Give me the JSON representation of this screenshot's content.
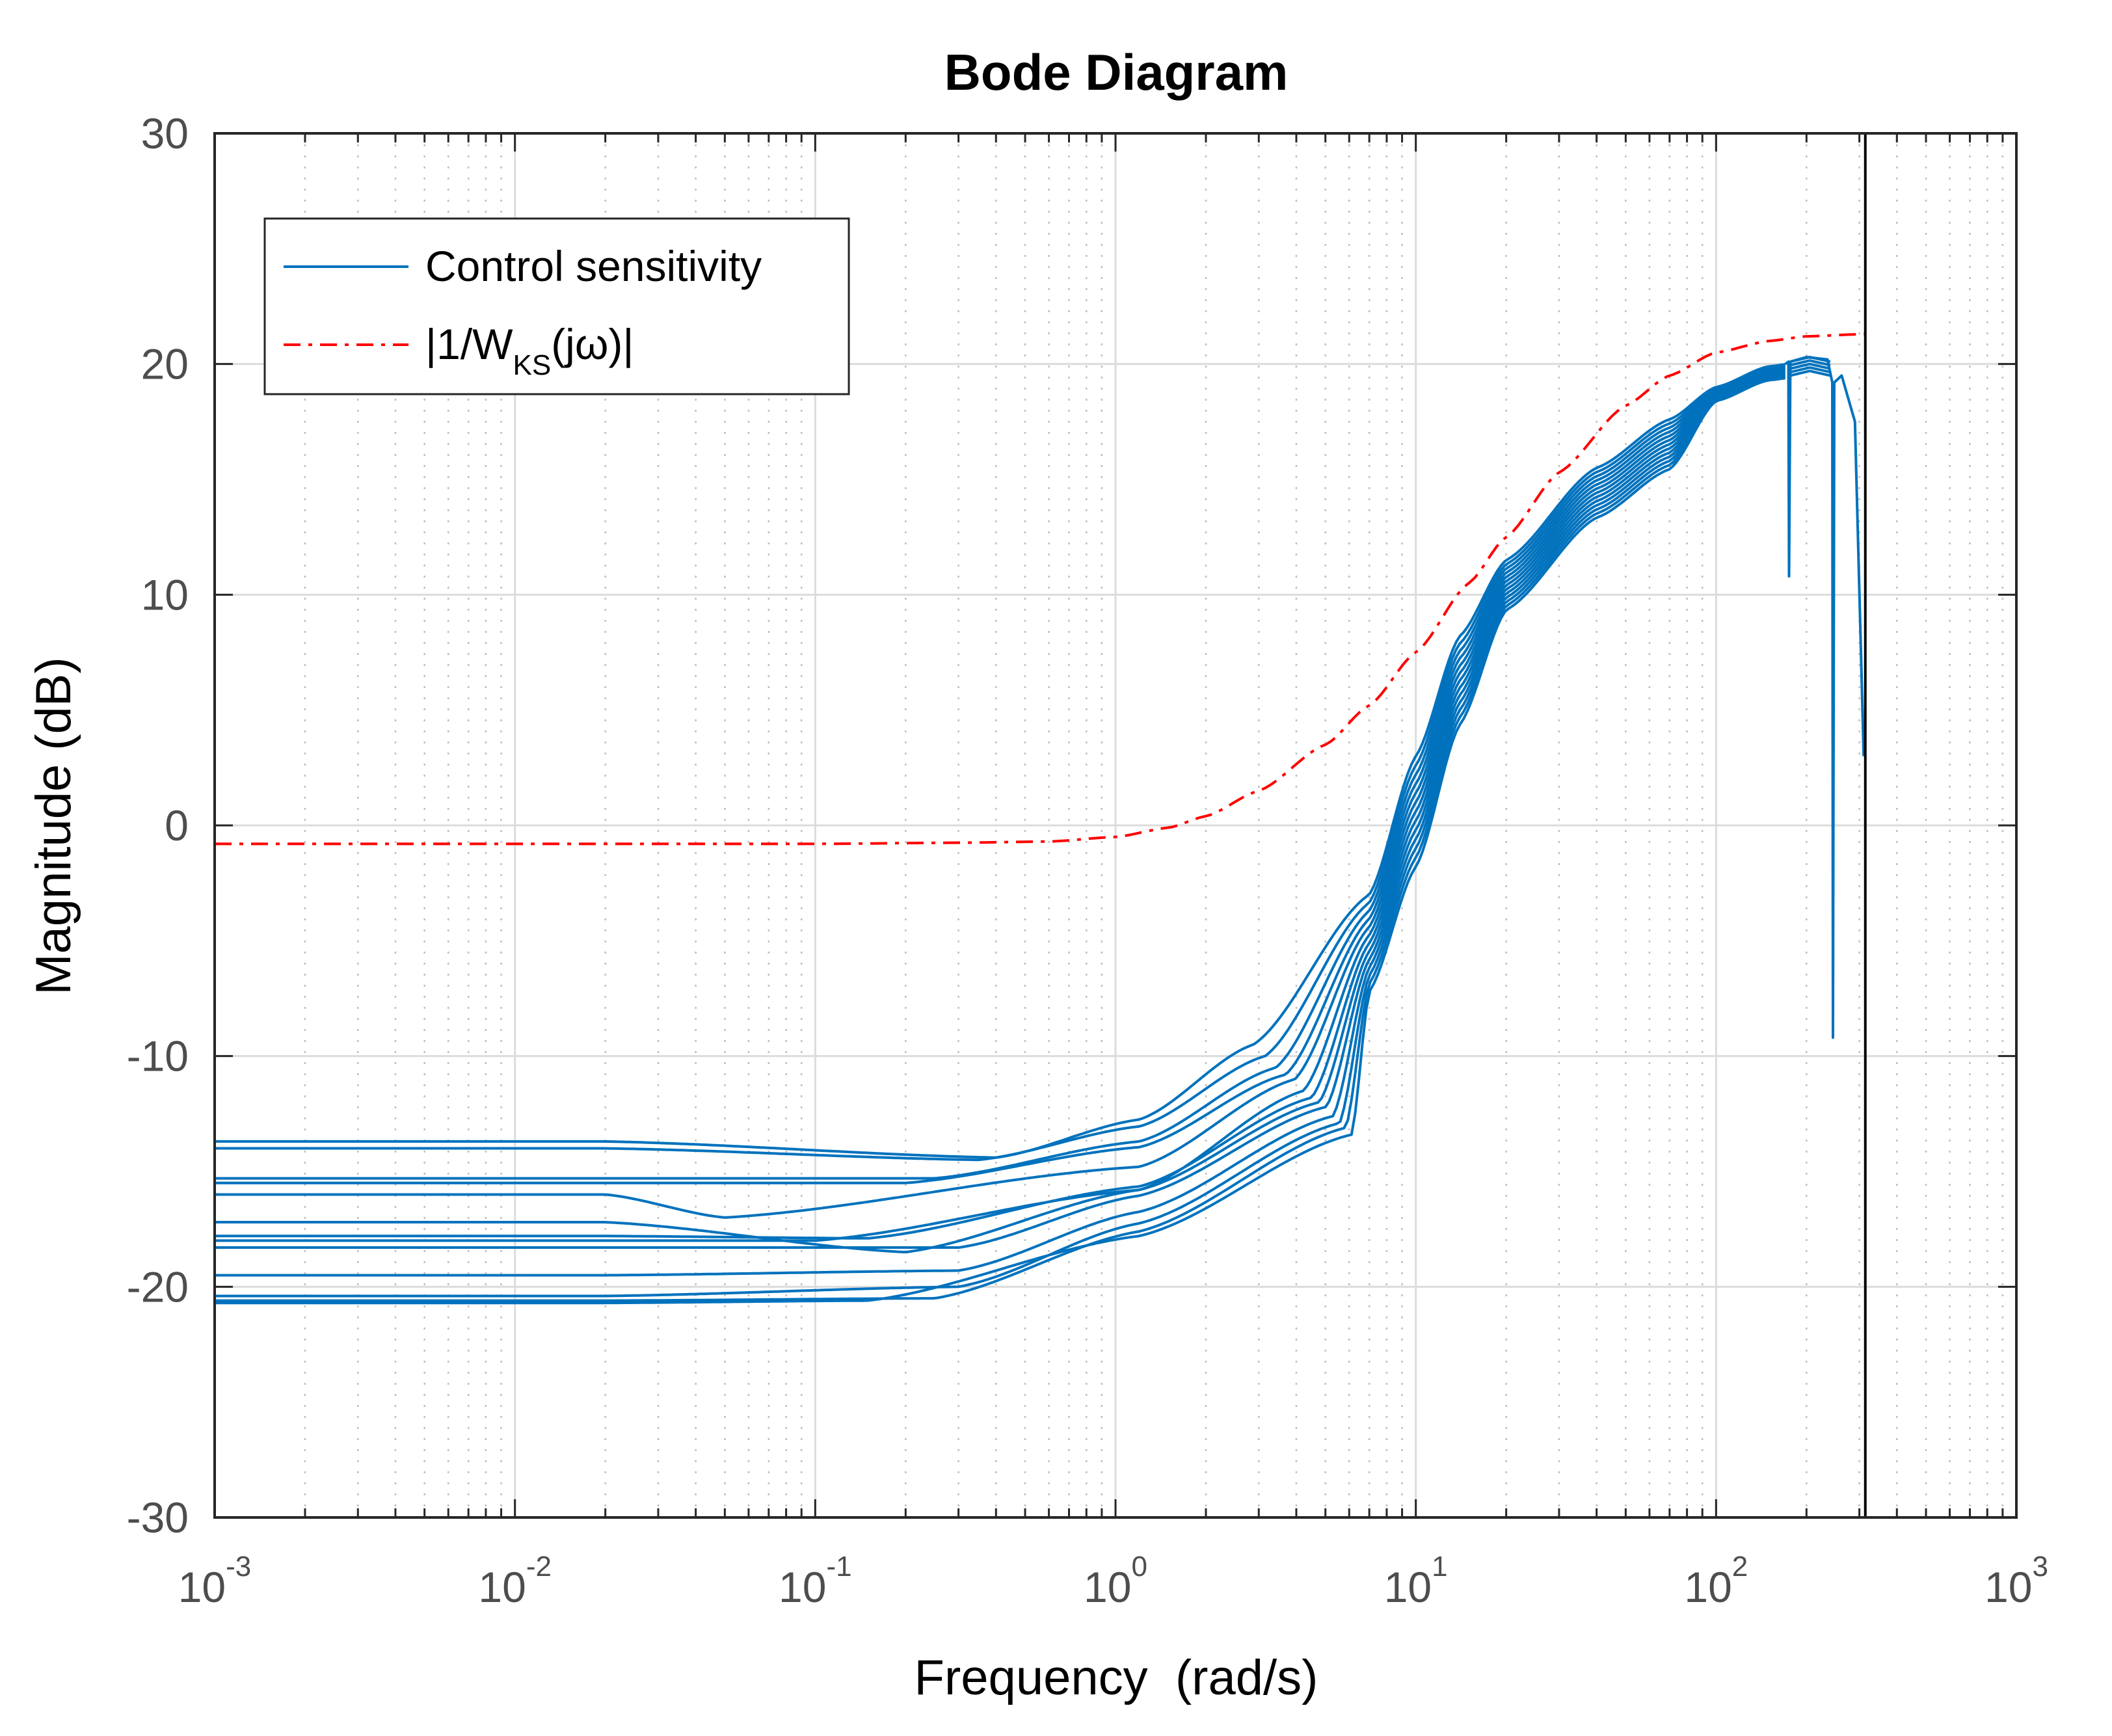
{
  "chart_data": {
    "type": "line",
    "title": "Bode Diagram",
    "xlabel": "Frequency  (rad/s)",
    "ylabel": "Magnitude (dB)",
    "xscale": "log",
    "xlim": [
      0.001,
      1000
    ],
    "ylim": [
      -30,
      30
    ],
    "x_ticks": [
      {
        "base": "10",
        "exp": "-3",
        "value": 0.001
      },
      {
        "base": "10",
        "exp": "-2",
        "value": 0.01
      },
      {
        "base": "10",
        "exp": "-1",
        "value": 0.1
      },
      {
        "base": "10",
        "exp": "0",
        "value": 1
      },
      {
        "base": "10",
        "exp": "1",
        "value": 10
      },
      {
        "base": "10",
        "exp": "2",
        "value": 100
      },
      {
        "base": "10",
        "exp": "3",
        "value": 1000
      }
    ],
    "y_ticks": [
      {
        "label": "30",
        "value": 30
      },
      {
        "label": "20",
        "value": 20
      },
      {
        "label": "10",
        "value": 10
      },
      {
        "label": "0",
        "value": 0
      },
      {
        "label": "-10",
        "value": -10
      },
      {
        "label": "-20",
        "value": -20
      },
      {
        "label": "-30",
        "value": -30
      }
    ],
    "grid": true,
    "legend_position": "top-left",
    "legend": [
      {
        "text": "Control sensitivity",
        "color": "#0072bd",
        "style": "solid"
      },
      {
        "pre": "|1/W",
        "sub": "KS",
        "post": "(jω)|",
        "color": "#ff0000",
        "style": "dashdot"
      }
    ],
    "nyquist_line": {
      "x": 314,
      "color": "#000000"
    },
    "weight_curve": {
      "name": "|1/W_KS(jω)|",
      "x": [
        0.001,
        0.01,
        0.1,
        0.3,
        0.6,
        1,
        1.5,
        2,
        3,
        5,
        7,
        10,
        15,
        20,
        30,
        50,
        70,
        100,
        150,
        200,
        314
      ],
      "y": [
        -0.8,
        -0.8,
        -0.8,
        -0.75,
        -0.7,
        -0.5,
        -0.1,
        0.4,
        1.5,
        3.5,
        5.2,
        7.5,
        10.5,
        12.5,
        15.3,
        18.2,
        19.5,
        20.5,
        21.0,
        21.2,
        21.3
      ]
    },
    "sensitivity_series": [
      {
        "low": -13.7,
        "mid_x": 0.4,
        "mid_y": -14.4,
        "knee": -9.5
      },
      {
        "low": -14.0,
        "mid_x": 0.35,
        "mid_y": -14.5,
        "knee": -10.0
      },
      {
        "low": -15.3,
        "mid_x": 0.25,
        "mid_y": -15.3,
        "knee": -10.5
      },
      {
        "low": -15.5,
        "mid_x": 0.2,
        "mid_y": -15.5,
        "knee": -10.8
      },
      {
        "low": -16.0,
        "mid_x": 0.05,
        "mid_y": -17.0,
        "knee": -11.0
      },
      {
        "low": -17.2,
        "mid_x": 0.2,
        "mid_y": -18.5,
        "knee": -11.5
      },
      {
        "low": -17.8,
        "mid_x": 0.15,
        "mid_y": -17.9,
        "knee": -11.8
      },
      {
        "low": -18.0,
        "mid_x": 0.1,
        "mid_y": -18.0,
        "knee": -12.0
      },
      {
        "low": -18.3,
        "mid_x": 0.3,
        "mid_y": -18.3,
        "knee": -12.2
      },
      {
        "low": -19.5,
        "mid_x": 0.3,
        "mid_y": -19.3,
        "knee": -12.6
      },
      {
        "low": -20.4,
        "mid_x": 0.3,
        "mid_y": -20.0,
        "knee": -12.9
      },
      {
        "low": -20.6,
        "mid_x": 0.25,
        "mid_y": -20.5,
        "knee": -13.1
      },
      {
        "low": -20.7,
        "mid_x": 0.15,
        "mid_y": -20.6,
        "knee": -13.4
      }
    ],
    "sensitivity_high": {
      "x": [
        20,
        40,
        70,
        100,
        150,
        175
      ],
      "y": [
        11.5,
        15.5,
        17.6,
        19.0,
        19.9,
        20.0
      ]
    },
    "sensitivity_notches": [
      {
        "x": 175,
        "depth": 10.8,
        "peak": 20.1
      },
      {
        "x": 245,
        "depth": -9.2,
        "peak": 20.2
      },
      {
        "x": 310,
        "depth": 3.0,
        "peak": 19.5
      }
    ]
  }
}
